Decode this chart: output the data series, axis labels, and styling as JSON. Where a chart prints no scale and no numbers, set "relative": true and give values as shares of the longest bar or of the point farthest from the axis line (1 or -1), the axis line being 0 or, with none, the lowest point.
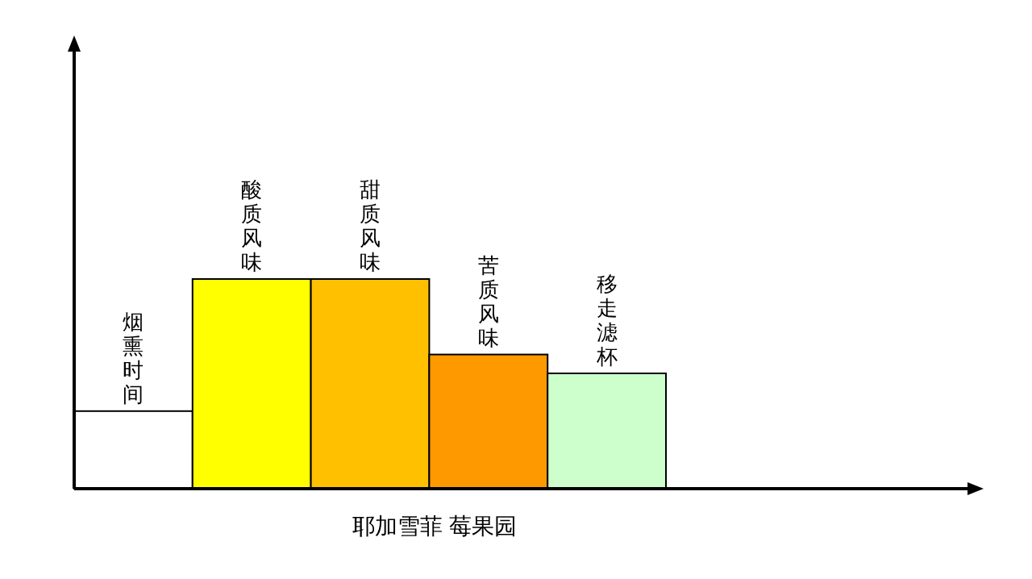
{
  "chart_data": {
    "type": "bar",
    "relative": true,
    "xlabel": "耶加雪菲 莓果园",
    "categories": [
      "烟熏时间",
      "酸质风味",
      "甜质风味",
      "苦质风味",
      "移走滤杯"
    ],
    "values": [
      0.37,
      1,
      1,
      0.64,
      0.55
    ],
    "colors": [
      "#ffffff",
      "#ffff00",
      "#ffc000",
      "#ff9900",
      "#ccffcc"
    ]
  }
}
